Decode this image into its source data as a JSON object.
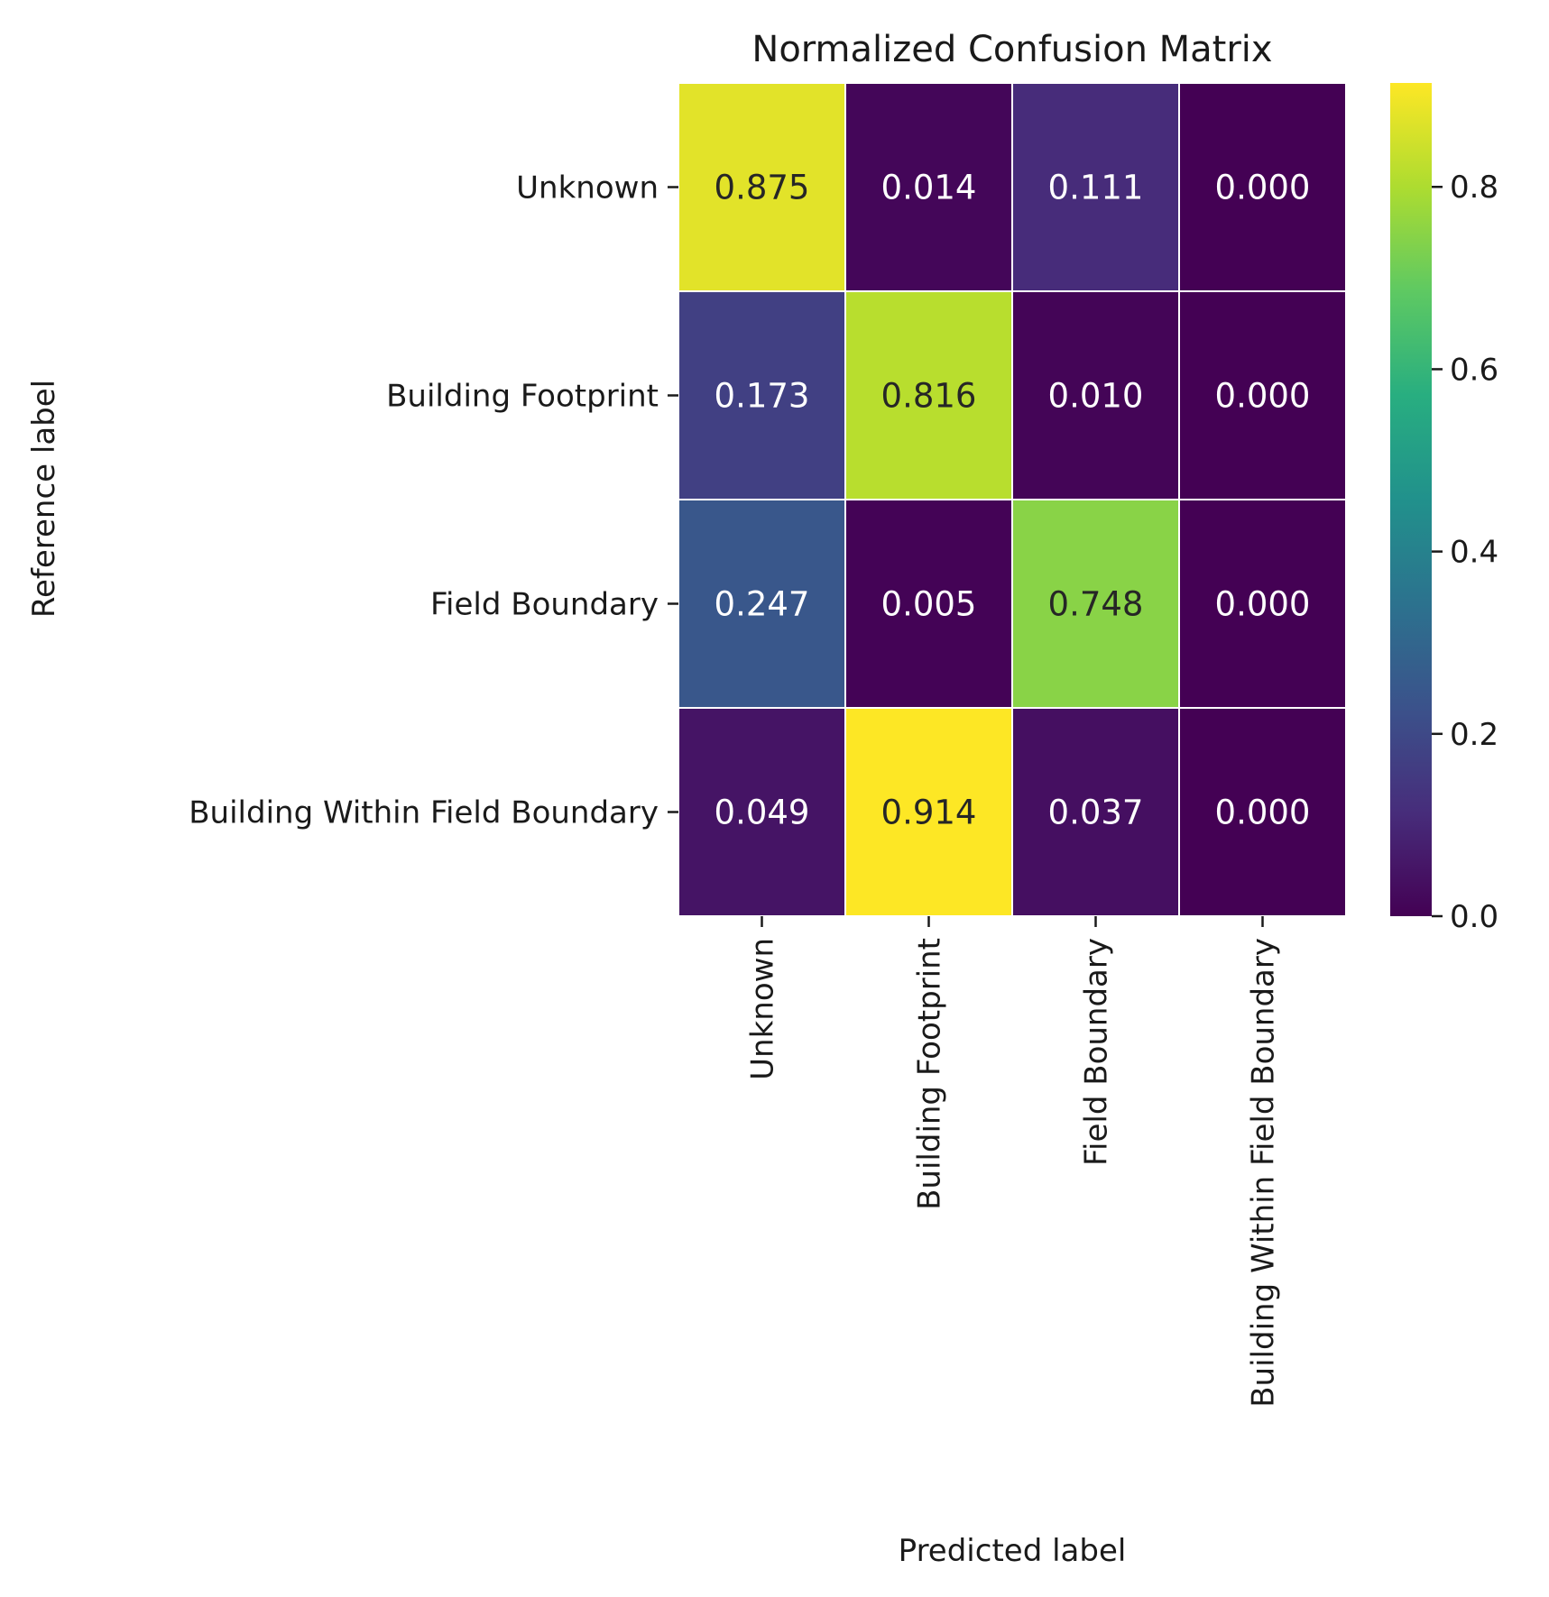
{
  "chart_data": {
    "type": "heatmap",
    "title": "Normalized Confusion Matrix",
    "xlabel": "Predicted label",
    "ylabel": "Reference label",
    "x_categories": [
      "Unknown",
      "Building Footprint",
      "Field Boundary",
      "Building Within Field Boundary"
    ],
    "y_categories": [
      "Unknown",
      "Building Footprint",
      "Field Boundary",
      "Building Within Field Boundary"
    ],
    "values": [
      [
        0.875,
        0.014,
        0.111,
        0.0
      ],
      [
        0.173,
        0.816,
        0.01,
        0.0
      ],
      [
        0.247,
        0.005,
        0.748,
        0.0
      ],
      [
        0.049,
        0.914,
        0.037,
        0.0
      ]
    ],
    "cell_labels": [
      [
        "0.875",
        "0.014",
        "0.111",
        "0.000"
      ],
      [
        "0.173",
        "0.816",
        "0.010",
        "0.000"
      ],
      [
        "0.247",
        "0.005",
        "0.748",
        "0.000"
      ],
      [
        "0.049",
        "0.914",
        "0.037",
        "0.000"
      ]
    ],
    "colormap": "viridis",
    "color_range": [
      0,
      0.914
    ],
    "colorbar_ticks": [
      0.0,
      0.2,
      0.4,
      0.6,
      0.8
    ],
    "colorbar_tick_labels": [
      "0.0",
      "0.2",
      "0.4",
      "0.6",
      "0.8"
    ],
    "grid": false
  }
}
